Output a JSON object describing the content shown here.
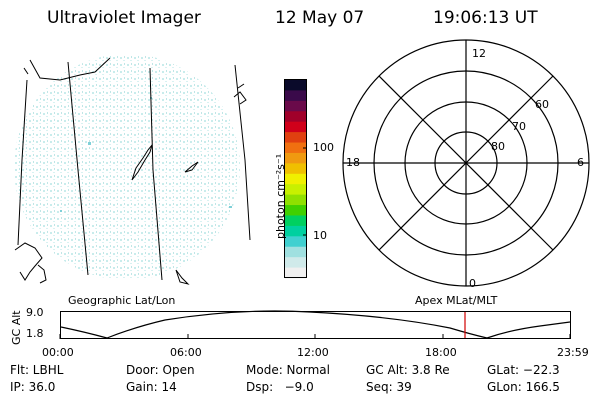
{
  "header": {
    "instrument": "Ultraviolet Imager",
    "date": "12 May 07",
    "time": "19:06:13 UT"
  },
  "colorbar": {
    "unit_label": "photon cm⁻²s⁻¹",
    "ticks": [
      "100",
      "10"
    ],
    "colors": [
      "#0a0a2a",
      "#3a0a4a",
      "#6a0a4a",
      "#a0002a",
      "#d0001a",
      "#e04010",
      "#f07010",
      "#f09a10",
      "#f0c000",
      "#f0f000",
      "#c8f000",
      "#90e000",
      "#40d000",
      "#00d060",
      "#00d0a0",
      "#40d0d0",
      "#a0e0e0",
      "#d0eaea",
      "#f0f0f0"
    ]
  },
  "polar_plot": {
    "hour_labels": {
      "top": "12",
      "bottom": "0",
      "left": "18",
      "right": "6"
    },
    "lat_labels": [
      "60",
      "70",
      "80"
    ]
  },
  "timeline": {
    "left_title": "Geographic Lat/Lon",
    "right_title": "Apex MLat/MLT",
    "y_axis_label": "GC Alt",
    "y_ticks": [
      "9.0",
      "1.8"
    ],
    "x_ticks": [
      "00:00",
      "06:00",
      "12:00",
      "18:00",
      "23:59"
    ],
    "current_time_marker_color": "#d00000"
  },
  "status": {
    "filter": "Flt: LBHL",
    "door": "Door: Open",
    "mode": "Mode: Normal",
    "gc_alt": "GC Alt: 3.8 Re",
    "glat": "GLat: −22.3",
    "ip": "IP: 36.0",
    "gain": "Gain: 14",
    "dsp": "Dsp:   −9.0",
    "seq": "Seq: 39",
    "glon": "GLon: 166.5"
  }
}
